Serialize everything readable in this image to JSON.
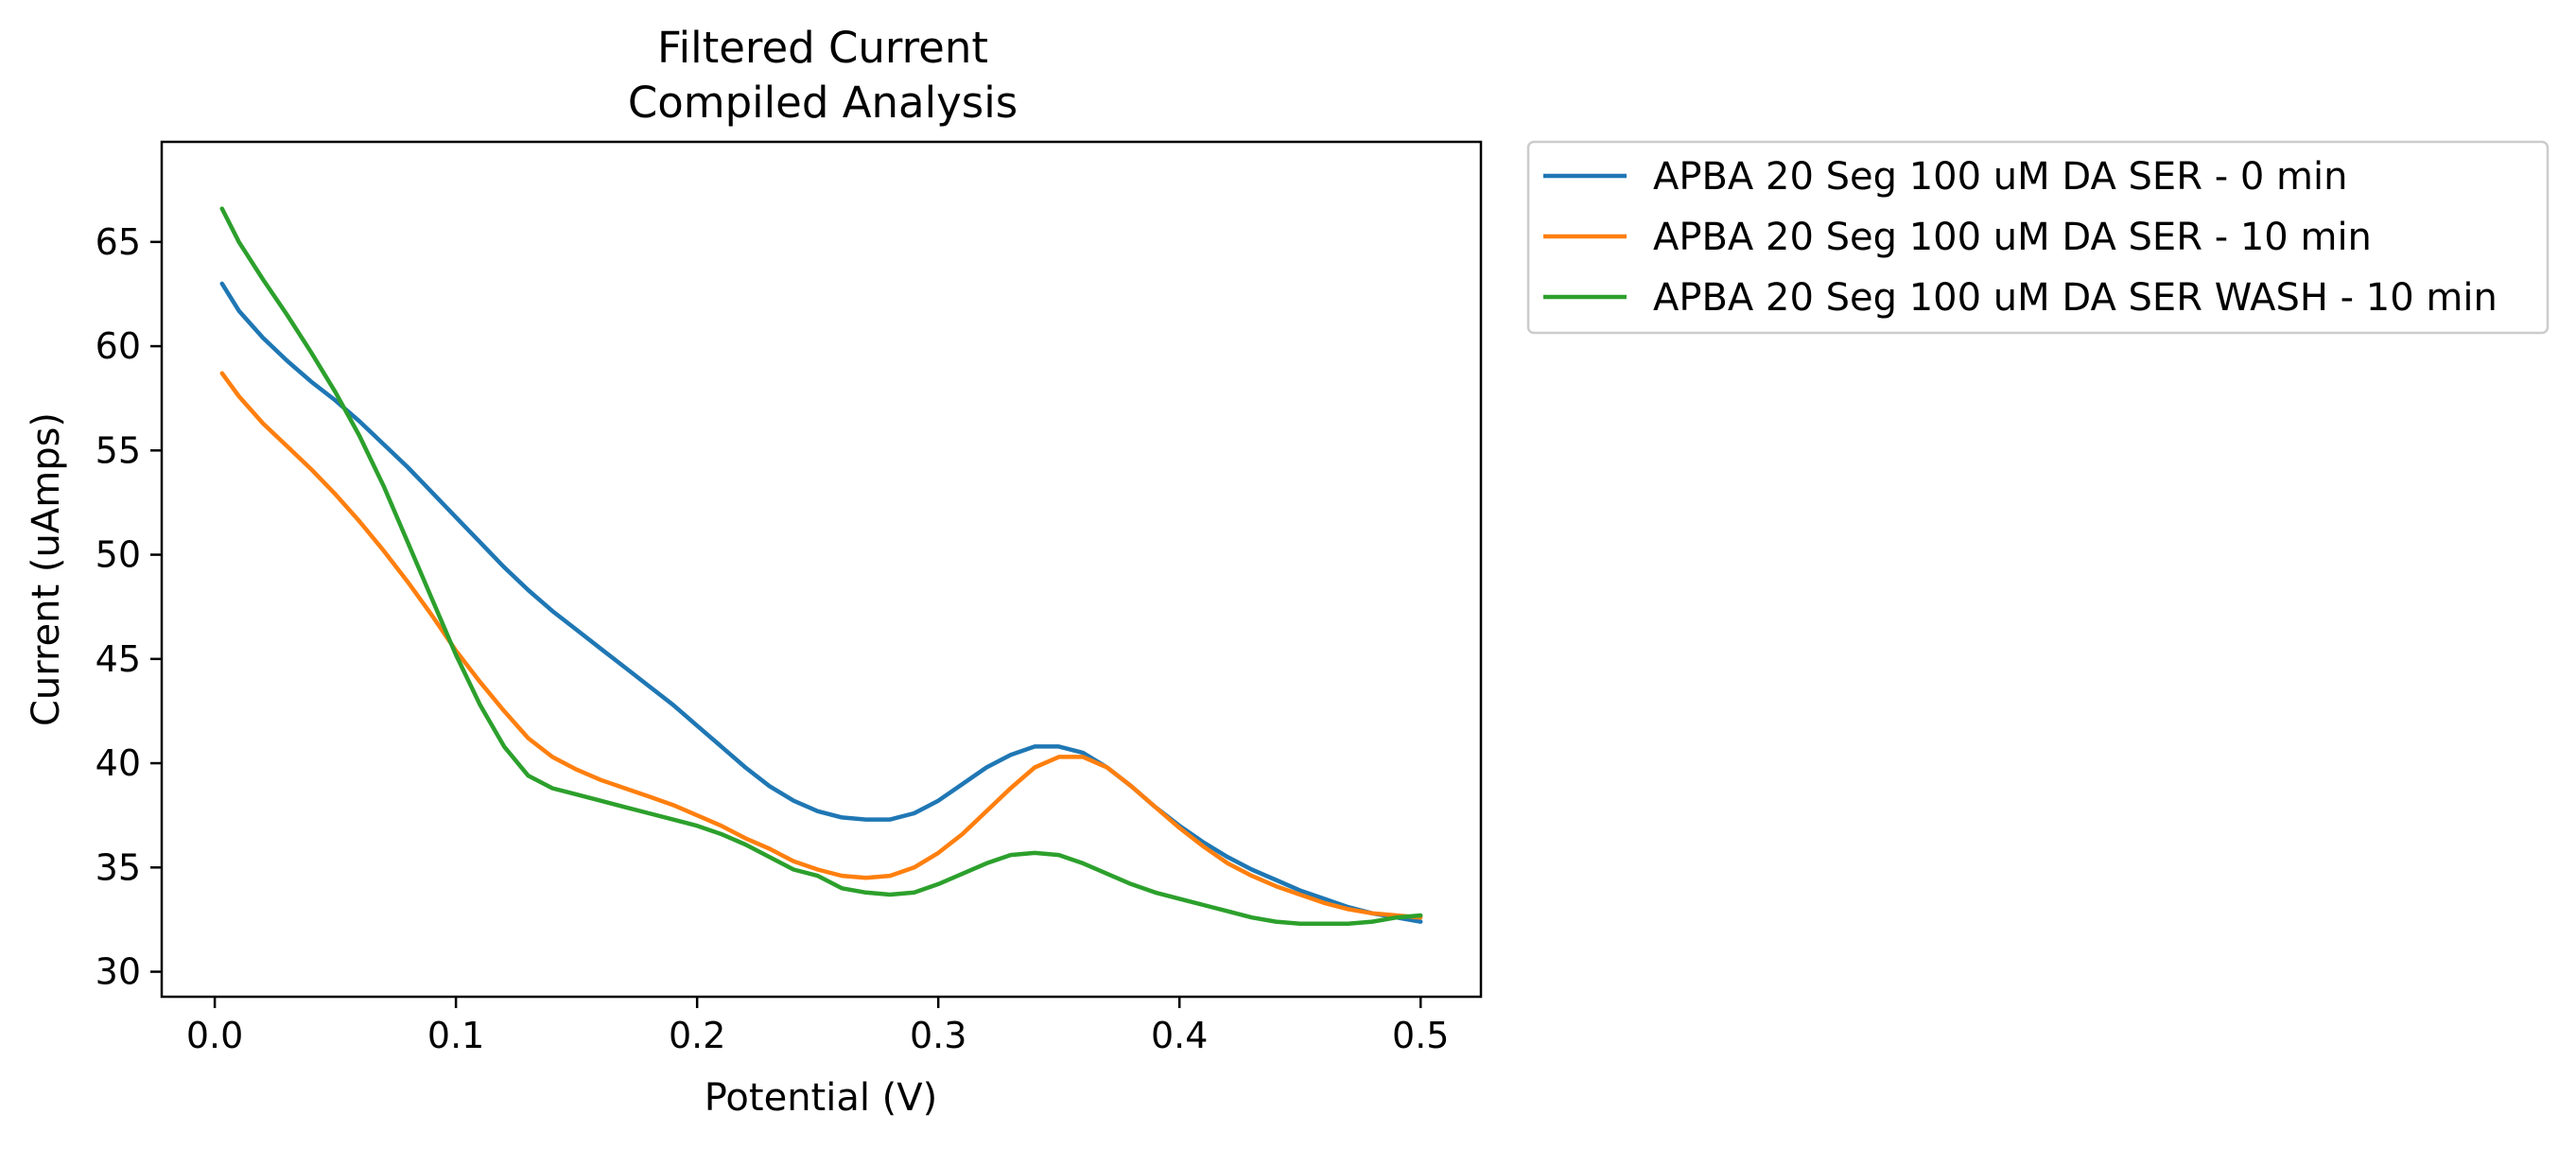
{
  "chart_data": {
    "type": "line",
    "title": "Filtered Current\nCompiled Analysis",
    "title_lines": [
      "Filtered Current",
      "Compiled Analysis"
    ],
    "xlabel": "Potential (V)",
    "ylabel": "Current (uAmps)",
    "xlim": [
      -0.022,
      0.525
    ],
    "ylim": [
      28.8,
      69.8
    ],
    "xticks": [
      0.0,
      0.1,
      0.2,
      0.3,
      0.4,
      0.5
    ],
    "xtick_labels": [
      "0.0",
      "0.1",
      "0.2",
      "0.3",
      "0.4",
      "0.5"
    ],
    "yticks": [
      30,
      35,
      40,
      45,
      50,
      55,
      60,
      65
    ],
    "ytick_labels": [
      "30",
      "35",
      "40",
      "45",
      "50",
      "55",
      "60",
      "65"
    ],
    "grid": false,
    "legend_position": "outside-upper-right",
    "series": [
      {
        "name": "APBA 20 Seg 100 uM DA SER - 0 min",
        "color": "#1f77b4",
        "x": [
          0.003,
          0.01,
          0.02,
          0.03,
          0.04,
          0.05,
          0.06,
          0.07,
          0.08,
          0.09,
          0.1,
          0.11,
          0.12,
          0.13,
          0.14,
          0.15,
          0.16,
          0.17,
          0.18,
          0.19,
          0.2,
          0.21,
          0.22,
          0.23,
          0.24,
          0.25,
          0.26,
          0.27,
          0.28,
          0.29,
          0.3,
          0.31,
          0.32,
          0.33,
          0.34,
          0.35,
          0.36,
          0.37,
          0.38,
          0.39,
          0.4,
          0.41,
          0.42,
          0.43,
          0.44,
          0.45,
          0.46,
          0.47,
          0.48,
          0.49,
          0.5
        ],
        "y": [
          63.0,
          61.7,
          60.4,
          59.3,
          58.3,
          57.4,
          56.4,
          55.3,
          54.2,
          53.0,
          51.8,
          50.6,
          49.4,
          48.3,
          47.3,
          46.4,
          45.5,
          44.6,
          43.7,
          42.8,
          41.8,
          40.8,
          39.8,
          38.9,
          38.2,
          37.7,
          37.4,
          37.3,
          37.3,
          37.6,
          38.2,
          39.0,
          39.8,
          40.4,
          40.8,
          40.8,
          40.5,
          39.8,
          38.9,
          37.9,
          37.0,
          36.2,
          35.5,
          34.9,
          34.4,
          33.9,
          33.5,
          33.1,
          32.8,
          32.6,
          32.4
        ]
      },
      {
        "name": "APBA 20 Seg 100 uM DA SER - 10 min",
        "color": "#ff7f0e",
        "x": [
          0.003,
          0.01,
          0.02,
          0.03,
          0.04,
          0.05,
          0.06,
          0.07,
          0.08,
          0.09,
          0.1,
          0.11,
          0.12,
          0.13,
          0.14,
          0.15,
          0.16,
          0.17,
          0.18,
          0.19,
          0.2,
          0.21,
          0.22,
          0.23,
          0.24,
          0.25,
          0.26,
          0.27,
          0.28,
          0.29,
          0.3,
          0.31,
          0.32,
          0.33,
          0.34,
          0.35,
          0.36,
          0.37,
          0.38,
          0.39,
          0.4,
          0.41,
          0.42,
          0.43,
          0.44,
          0.45,
          0.46,
          0.47,
          0.48,
          0.49,
          0.5
        ],
        "y": [
          58.7,
          57.6,
          56.3,
          55.2,
          54.1,
          52.9,
          51.6,
          50.2,
          48.7,
          47.1,
          45.4,
          43.9,
          42.5,
          41.2,
          40.3,
          39.7,
          39.2,
          38.8,
          38.4,
          38.0,
          37.5,
          37.0,
          36.4,
          35.9,
          35.3,
          34.9,
          34.6,
          34.5,
          34.6,
          35.0,
          35.7,
          36.6,
          37.7,
          38.8,
          39.8,
          40.3,
          40.3,
          39.8,
          38.9,
          37.9,
          36.9,
          36.0,
          35.2,
          34.6,
          34.1,
          33.7,
          33.3,
          33.0,
          32.8,
          32.7,
          32.6
        ]
      },
      {
        "name": "APBA 20 Seg 100 uM DA SER WASH - 10 min",
        "color": "#2ca02c",
        "x": [
          0.003,
          0.01,
          0.02,
          0.03,
          0.04,
          0.05,
          0.06,
          0.07,
          0.08,
          0.09,
          0.1,
          0.11,
          0.12,
          0.13,
          0.14,
          0.15,
          0.16,
          0.17,
          0.18,
          0.19,
          0.2,
          0.21,
          0.22,
          0.23,
          0.24,
          0.25,
          0.26,
          0.27,
          0.28,
          0.29,
          0.3,
          0.31,
          0.32,
          0.33,
          0.34,
          0.35,
          0.36,
          0.37,
          0.38,
          0.39,
          0.4,
          0.41,
          0.42,
          0.43,
          0.44,
          0.45,
          0.46,
          0.47,
          0.48,
          0.49,
          0.5
        ],
        "y": [
          66.6,
          65.0,
          63.2,
          61.5,
          59.7,
          57.8,
          55.7,
          53.3,
          50.6,
          47.9,
          45.2,
          42.8,
          40.8,
          39.4,
          38.8,
          38.5,
          38.2,
          37.9,
          37.6,
          37.3,
          37.0,
          36.6,
          36.1,
          35.5,
          34.9,
          34.6,
          34.0,
          33.8,
          33.7,
          33.8,
          34.2,
          34.7,
          35.2,
          35.6,
          35.7,
          35.6,
          35.2,
          34.7,
          34.2,
          33.8,
          33.5,
          33.2,
          32.9,
          32.6,
          32.4,
          32.3,
          32.3,
          32.3,
          32.4,
          32.6,
          32.7
        ]
      }
    ]
  }
}
